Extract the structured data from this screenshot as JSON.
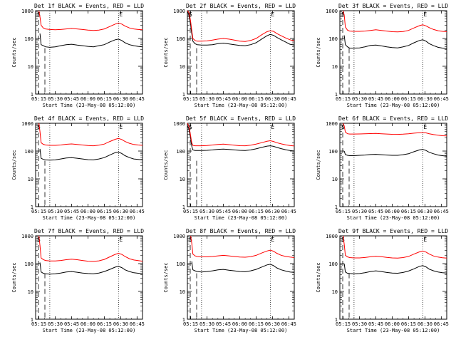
{
  "figure": {
    "y_tick_labels": [
      "1",
      "10",
      "100",
      "1000"
    ],
    "x_tick_labels": [
      "05:15",
      "05:30",
      "05:45",
      "06:00",
      "06:15",
      "06:30",
      "06:45"
    ],
    "vertical_markers": [
      "S",
      "E"
    ],
    "colors": {
      "events": "#000000",
      "lld": "#ff0000",
      "axes": "#000000",
      "background": "#ffffff"
    }
  },
  "chart_data": [
    {
      "type": "line",
      "panel": "det-1f",
      "title": "Det 1f BLACK = Events, RED = LLD",
      "xlabel": "Start Time (23-May-08 05:12:00)",
      "ylabel": "Counts/sec",
      "y_scale": "log",
      "ylim": [
        1,
        1000
      ],
      "x_times": [
        "05:12",
        "05:13",
        "05:14",
        "05:15",
        "05:16",
        "05:17",
        "05:19",
        "05:21",
        "05:25",
        "05:30",
        "05:35",
        "05:40",
        "05:45",
        "05:50",
        "05:55",
        "06:00",
        "06:05",
        "06:10",
        "06:15",
        "06:20",
        "06:25",
        "06:28",
        "06:31",
        "06:34",
        "06:38",
        "06:42",
        "06:46",
        "06:50"
      ],
      "series": [
        {
          "name": "Events",
          "color": "#000000",
          "values": [
            null,
            null,
            null,
            null,
            150,
            60,
            55,
            50,
            48,
            50,
            55,
            60,
            62,
            58,
            55,
            52,
            50,
            55,
            60,
            75,
            90,
            95,
            85,
            70,
            60,
            55,
            52,
            50
          ]
        },
        {
          "name": "LLD",
          "color": "#ff0000",
          "values": [
            null,
            null,
            null,
            1000,
            600,
            300,
            240,
            220,
            210,
            205,
            210,
            220,
            230,
            220,
            210,
            200,
            195,
            200,
            220,
            270,
            330,
            360,
            330,
            280,
            240,
            220,
            210,
            205
          ]
        }
      ],
      "dotted_time_markers": [
        "05:25",
        "06:28"
      ]
    },
    {
      "type": "line",
      "panel": "det-2f",
      "title": "Det 2f BLACK = Events, RED = LLD",
      "xlabel": "Start Time (23-May-08 05:12:00)",
      "ylabel": "Counts/sec",
      "y_scale": "log",
      "ylim": [
        1,
        1000
      ],
      "x_times": [
        "05:12",
        "05:13",
        "05:14",
        "05:15",
        "05:16",
        "05:17",
        "05:19",
        "05:21",
        "05:25",
        "05:30",
        "05:35",
        "05:40",
        "05:45",
        "05:50",
        "05:55",
        "06:00",
        "06:05",
        "06:10",
        "06:15",
        "06:20",
        "06:25",
        "06:28",
        "06:31",
        "06:34",
        "06:38",
        "06:42",
        "06:46",
        "06:50"
      ],
      "series": [
        {
          "name": "Events",
          "color": "#000000",
          "values": [
            900,
            800,
            500,
            300,
            150,
            80,
            65,
            60,
            58,
            58,
            60,
            65,
            68,
            64,
            60,
            56,
            55,
            60,
            70,
            95,
            125,
            140,
            130,
            110,
            90,
            75,
            62,
            58
          ]
        },
        {
          "name": "LLD",
          "color": "#ff0000",
          "values": [
            1000,
            900,
            700,
            400,
            200,
            100,
            85,
            80,
            80,
            82,
            88,
            95,
            100,
            95,
            88,
            80,
            78,
            85,
            100,
            135,
            175,
            190,
            180,
            150,
            125,
            105,
            90,
            82
          ]
        }
      ],
      "dotted_time_markers": [
        "05:25",
        "06:28"
      ]
    },
    {
      "type": "line",
      "panel": "det-3f",
      "title": "Det 3f BLACK = Events, RED = LLD",
      "xlabel": "Start Time (23-May-08 05:12:00)",
      "ylabel": "Counts/sec",
      "y_scale": "log",
      "ylim": [
        1,
        1000
      ],
      "x_times": [
        "05:12",
        "05:13",
        "05:14",
        "05:15",
        "05:16",
        "05:17",
        "05:19",
        "05:21",
        "05:25",
        "05:30",
        "05:35",
        "05:40",
        "05:45",
        "05:50",
        "05:55",
        "06:00",
        "06:05",
        "06:10",
        "06:15",
        "06:20",
        "06:25",
        "06:28",
        "06:31",
        "06:34",
        "06:38",
        "06:42",
        "06:46",
        "06:50"
      ],
      "series": [
        {
          "name": "Events",
          "color": "#000000",
          "values": [
            null,
            null,
            null,
            null,
            130,
            60,
            50,
            45,
            45,
            46,
            50,
            56,
            58,
            54,
            50,
            47,
            46,
            50,
            56,
            70,
            85,
            90,
            80,
            65,
            55,
            48,
            45,
            43
          ]
        },
        {
          "name": "LLD",
          "color": "#ff0000",
          "values": [
            null,
            null,
            null,
            1000,
            700,
            260,
            200,
            185,
            180,
            180,
            185,
            195,
            205,
            195,
            185,
            175,
            172,
            178,
            195,
            240,
            290,
            310,
            285,
            245,
            210,
            190,
            180,
            175
          ]
        }
      ],
      "dotted_time_markers": [
        "05:25",
        "06:28"
      ]
    },
    {
      "type": "line",
      "panel": "det-4f",
      "title": "Det 4f BLACK = Events, RED = LLD",
      "xlabel": "Start Time (23-May-08 05:12:00)",
      "ylabel": "Counts/sec",
      "y_scale": "log",
      "ylim": [
        1,
        1000
      ],
      "x_times": [
        "05:12",
        "05:13",
        "05:14",
        "05:15",
        "05:16",
        "05:17",
        "05:19",
        "05:21",
        "05:25",
        "05:30",
        "05:35",
        "05:40",
        "05:45",
        "05:50",
        "05:55",
        "06:00",
        "06:05",
        "06:10",
        "06:15",
        "06:20",
        "06:25",
        "06:28",
        "06:31",
        "06:34",
        "06:38",
        "06:42",
        "06:46",
        "06:50"
      ],
      "series": [
        {
          "name": "Events",
          "color": "#000000",
          "values": [
            null,
            null,
            null,
            null,
            120,
            55,
            50,
            48,
            47,
            48,
            52,
            56,
            58,
            55,
            52,
            49,
            48,
            52,
            58,
            72,
            88,
            92,
            82,
            68,
            58,
            52,
            50,
            48
          ]
        },
        {
          "name": "LLD",
          "color": "#ff0000",
          "values": [
            null,
            null,
            null,
            1000,
            500,
            200,
            175,
            165,
            160,
            160,
            165,
            175,
            180,
            172,
            165,
            158,
            155,
            162,
            178,
            220,
            265,
            285,
            260,
            220,
            190,
            172,
            165,
            160
          ]
        }
      ],
      "dotted_time_markers": [
        "05:25",
        "06:28"
      ]
    },
    {
      "type": "line",
      "panel": "det-5f",
      "title": "Det 5f BLACK = Events, RED = LLD",
      "xlabel": "Start Time (23-May-08 05:12:00)",
      "ylabel": "Counts/sec",
      "y_scale": "log",
      "ylim": [
        1,
        1000
      ],
      "x_times": [
        "05:12",
        "05:13",
        "05:14",
        "05:15",
        "05:16",
        "05:17",
        "05:19",
        "05:21",
        "05:25",
        "05:30",
        "05:35",
        "05:40",
        "05:45",
        "05:50",
        "05:55",
        "06:00",
        "06:05",
        "06:10",
        "06:15",
        "06:20",
        "06:25",
        "06:28",
        "06:31",
        "06:34",
        "06:38",
        "06:42",
        "06:46",
        "06:50"
      ],
      "series": [
        {
          "name": "Events",
          "color": "#000000",
          "values": [
            800,
            700,
            450,
            280,
            150,
            110,
            105,
            105,
            105,
            106,
            110,
            115,
            118,
            114,
            110,
            106,
            105,
            110,
            120,
            135,
            150,
            155,
            148,
            135,
            122,
            112,
            105,
            100
          ]
        },
        {
          "name": "LLD",
          "color": "#ff0000",
          "values": [
            1000,
            850,
            600,
            350,
            200,
            160,
            155,
            155,
            155,
            158,
            165,
            172,
            178,
            170,
            162,
            156,
            155,
            162,
            178,
            200,
            225,
            235,
            220,
            200,
            182,
            168,
            158,
            152
          ]
        }
      ],
      "dotted_time_markers": [
        "05:25",
        "06:28"
      ]
    },
    {
      "type": "line",
      "panel": "det-6f",
      "title": "Det 6f BLACK = Events, RED = LLD",
      "xlabel": "Start Time (23-May-08 05:12:00)",
      "ylabel": "Counts/sec",
      "y_scale": "log",
      "ylim": [
        1,
        1000
      ],
      "x_times": [
        "05:12",
        "05:13",
        "05:14",
        "05:15",
        "05:16",
        "05:17",
        "05:19",
        "05:21",
        "05:25",
        "05:30",
        "05:35",
        "05:40",
        "05:45",
        "05:50",
        "05:55",
        "06:00",
        "06:05",
        "06:10",
        "06:15",
        "06:20",
        "06:25",
        "06:28",
        "06:31",
        "06:34",
        "06:38",
        "06:42",
        "06:46",
        "06:50"
      ],
      "series": [
        {
          "name": "Events",
          "color": "#000000",
          "values": [
            null,
            null,
            null,
            null,
            100,
            75,
            70,
            68,
            68,
            70,
            72,
            75,
            76,
            74,
            72,
            70,
            70,
            74,
            80,
            95,
            110,
            115,
            105,
            90,
            80,
            72,
            68,
            65
          ]
        },
        {
          "name": "LLD",
          "color": "#ff0000",
          "values": [
            null,
            null,
            null,
            1000,
            800,
            480,
            420,
            410,
            410,
            412,
            418,
            425,
            430,
            420,
            410,
            400,
            398,
            405,
            420,
            440,
            455,
            460,
            450,
            420,
            390,
            370,
            355,
            350
          ]
        }
      ],
      "dotted_time_markers": [
        "05:25",
        "06:28"
      ]
    },
    {
      "type": "line",
      "panel": "det-7f",
      "title": "Det 7f BLACK = Events, RED = LLD",
      "xlabel": "Start Time (23-May-08 05:12:00)",
      "ylabel": "Counts/sec",
      "y_scale": "log",
      "ylim": [
        1,
        1000
      ],
      "x_times": [
        "05:12",
        "05:13",
        "05:14",
        "05:15",
        "05:16",
        "05:17",
        "05:19",
        "05:21",
        "05:25",
        "05:30",
        "05:35",
        "05:40",
        "05:45",
        "05:50",
        "05:55",
        "06:00",
        "06:05",
        "06:10",
        "06:15",
        "06:20",
        "06:25",
        "06:28",
        "06:31",
        "06:34",
        "06:38",
        "06:42",
        "06:46",
        "06:50"
      ],
      "series": [
        {
          "name": "Events",
          "color": "#000000",
          "values": [
            null,
            null,
            null,
            null,
            110,
            50,
            45,
            43,
            42,
            43,
            46,
            50,
            52,
            49,
            46,
            44,
            43,
            46,
            52,
            62,
            75,
            80,
            72,
            60,
            52,
            47,
            45,
            43
          ]
        },
        {
          "name": "LLD",
          "color": "#ff0000",
          "values": [
            null,
            null,
            null,
            1000,
            450,
            160,
            140,
            130,
            125,
            125,
            130,
            138,
            145,
            138,
            130,
            122,
            120,
            126,
            142,
            175,
            215,
            235,
            215,
            180,
            150,
            135,
            128,
            122
          ]
        }
      ],
      "dotted_time_markers": [
        "05:25",
        "06:28"
      ]
    },
    {
      "type": "line",
      "panel": "det-8f",
      "title": "Det 8f BLACK = Events, RED = LLD",
      "xlabel": "Start Time (23-May-08 05:12:00)",
      "ylabel": "Counts/sec",
      "y_scale": "log",
      "ylim": [
        1,
        1000
      ],
      "x_times": [
        "05:12",
        "05:13",
        "05:14",
        "05:15",
        "05:16",
        "05:17",
        "05:19",
        "05:21",
        "05:25",
        "05:30",
        "05:35",
        "05:40",
        "05:45",
        "05:50",
        "05:55",
        "06:00",
        "06:05",
        "06:10",
        "06:15",
        "06:20",
        "06:25",
        "06:28",
        "06:31",
        "06:34",
        "06:38",
        "06:42",
        "06:46",
        "06:50"
      ],
      "series": [
        {
          "name": "Events",
          "color": "#000000",
          "values": [
            null,
            null,
            null,
            null,
            120,
            60,
            55,
            52,
            50,
            52,
            55,
            60,
            62,
            58,
            55,
            52,
            51,
            55,
            62,
            75,
            90,
            95,
            85,
            70,
            60,
            54,
            50,
            48
          ]
        },
        {
          "name": "LLD",
          "color": "#ff0000",
          "values": [
            null,
            null,
            null,
            1000,
            550,
            220,
            190,
            180,
            175,
            175,
            180,
            190,
            198,
            190,
            180,
            172,
            170,
            178,
            198,
            240,
            285,
            305,
            280,
            235,
            200,
            182,
            172,
            165
          ]
        }
      ],
      "dotted_time_markers": [
        "05:25",
        "06:28"
      ]
    },
    {
      "type": "line",
      "panel": "det-9f",
      "title": "Det 9f BLACK = Events, RED = LLD",
      "xlabel": "Start Time (23-May-08 05:12:00)",
      "ylabel": "Counts/sec",
      "y_scale": "log",
      "ylim": [
        1,
        1000
      ],
      "x_times": [
        "05:12",
        "05:13",
        "05:14",
        "05:15",
        "05:16",
        "05:17",
        "05:19",
        "05:21",
        "05:25",
        "05:30",
        "05:35",
        "05:40",
        "05:45",
        "05:50",
        "05:55",
        "06:00",
        "06:05",
        "06:10",
        "06:15",
        "06:20",
        "06:25",
        "06:28",
        "06:31",
        "06:34",
        "06:38",
        "06:42",
        "06:46",
        "06:50"
      ],
      "series": [
        {
          "name": "Events",
          "color": "#000000",
          "values": [
            null,
            null,
            null,
            null,
            100,
            50,
            45,
            44,
            43,
            44,
            47,
            52,
            55,
            52,
            48,
            46,
            45,
            48,
            54,
            65,
            80,
            85,
            76,
            63,
            55,
            50,
            47,
            46
          ]
        },
        {
          "name": "LLD",
          "color": "#ff0000",
          "values": [
            null,
            null,
            null,
            1000,
            500,
            200,
            175,
            165,
            160,
            160,
            166,
            176,
            185,
            178,
            168,
            160,
            158,
            165,
            182,
            220,
            265,
            285,
            260,
            220,
            188,
            172,
            162,
            158
          ]
        }
      ],
      "dotted_time_markers": [
        "05:25",
        "06:28"
      ]
    }
  ]
}
